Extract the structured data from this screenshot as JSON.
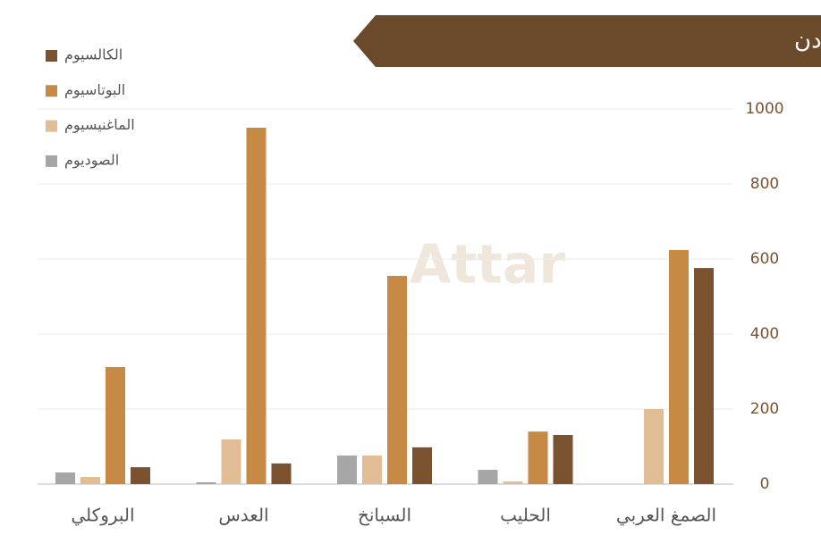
{
  "chart_data": {
    "type": "bar",
    "title": "الصمغ العربي غني جداً بالمعادن",
    "watermark": "Attar",
    "categories": [
      "الصمغ العربي",
      "الحليب",
      "السبانخ",
      "العدس",
      "البروكلي"
    ],
    "series": [
      {
        "name": "الكالسيوم",
        "color": "#7a5230",
        "values": [
          576,
          131,
          98,
          55,
          45
        ]
      },
      {
        "name": "البوتاسيوم",
        "color": "#c68a45",
        "values": [
          624,
          140,
          555,
          950,
          312
        ]
      },
      {
        "name": "الماغنيسيوم",
        "color": "#e0bd94",
        "values": [
          200,
          7,
          76,
          119,
          19
        ]
      },
      {
        "name": "الصوديوم",
        "color": "#a6a6a6",
        "values": [
          0,
          38,
          76,
          5,
          31
        ]
      }
    ],
    "ylim": [
      0,
      1000
    ],
    "yticks": [
      0,
      200,
      400,
      600,
      800,
      1000
    ],
    "grid": true,
    "legend": "top-left"
  }
}
